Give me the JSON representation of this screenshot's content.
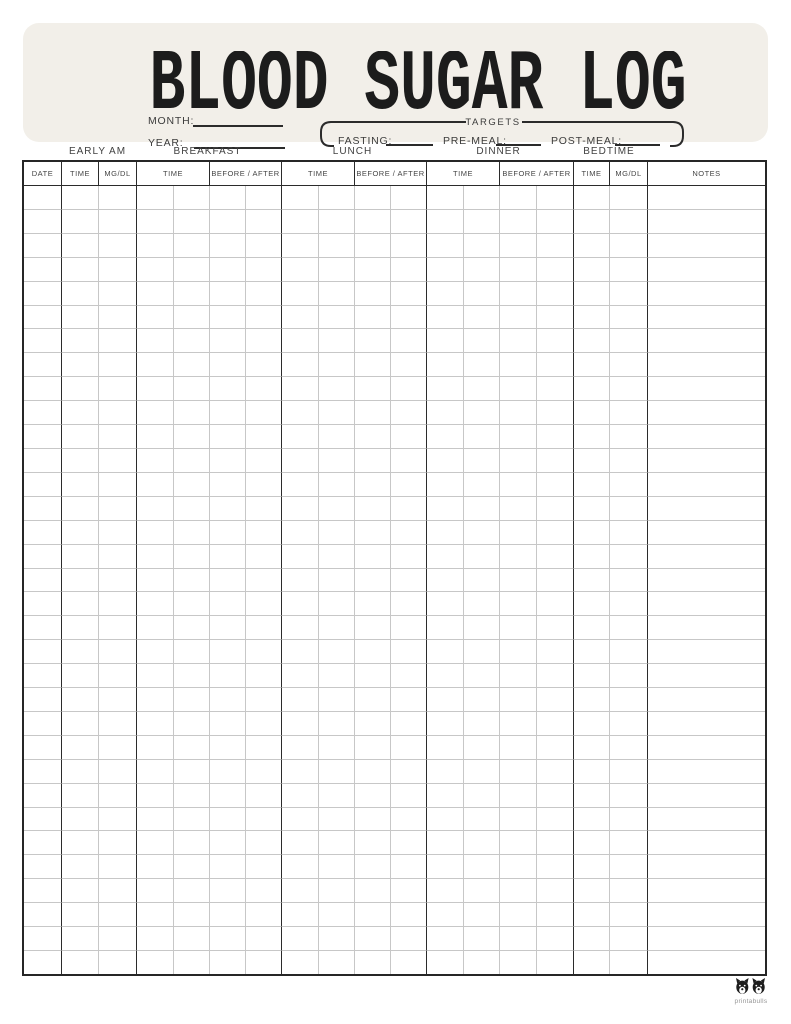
{
  "header": {
    "title": "BLOOD SUGAR LOG",
    "month_label": "MONTH:",
    "year_label": "YEAR:",
    "targets": {
      "box_label": "TARGETS",
      "fasting_label": "FASTING:",
      "pre_meal_label": "PRE-MEAL:",
      "post_meal_label": "POST-MEAL:"
    }
  },
  "table": {
    "groups": [
      {
        "label": "EARLY AM",
        "col_start": 2,
        "col_span": 2
      },
      {
        "label": "BREAKFAST",
        "col_start": 4,
        "col_span": 4
      },
      {
        "label": "LUNCH",
        "col_start": 8,
        "col_span": 4
      },
      {
        "label": "DINNER",
        "col_start": 12,
        "col_span": 4
      },
      {
        "label": "BEDTIME",
        "col_start": 16,
        "col_span": 2
      }
    ],
    "headers": [
      {
        "label": "DATE",
        "span": 1
      },
      {
        "label": "TIME",
        "span": 1
      },
      {
        "label": "MG/DL",
        "span": 1
      },
      {
        "label": "TIME",
        "span": 2
      },
      {
        "label": "BEFORE / AFTER",
        "span": 2
      },
      {
        "label": "TIME",
        "span": 2
      },
      {
        "label": "BEFORE / AFTER",
        "span": 2
      },
      {
        "label": "TIME",
        "span": 2
      },
      {
        "label": "BEFORE / AFTER",
        "span": 2
      },
      {
        "label": "TIME",
        "span": 1
      },
      {
        "label": "MG/DL",
        "span": 1
      },
      {
        "label": "NOTES",
        "span": 1
      }
    ],
    "body_rows": 33,
    "leaf_columns": 18,
    "dark_after_leaf": [
      0,
      2,
      6,
      10,
      14,
      16
    ]
  },
  "footer": {
    "logo_text": "printabulls"
  },
  "colors": {
    "band": "#f2efe9",
    "grid_dark": "#2b2b2b",
    "grid_light": "#c7c7c7",
    "title": "#1c1c1c"
  }
}
